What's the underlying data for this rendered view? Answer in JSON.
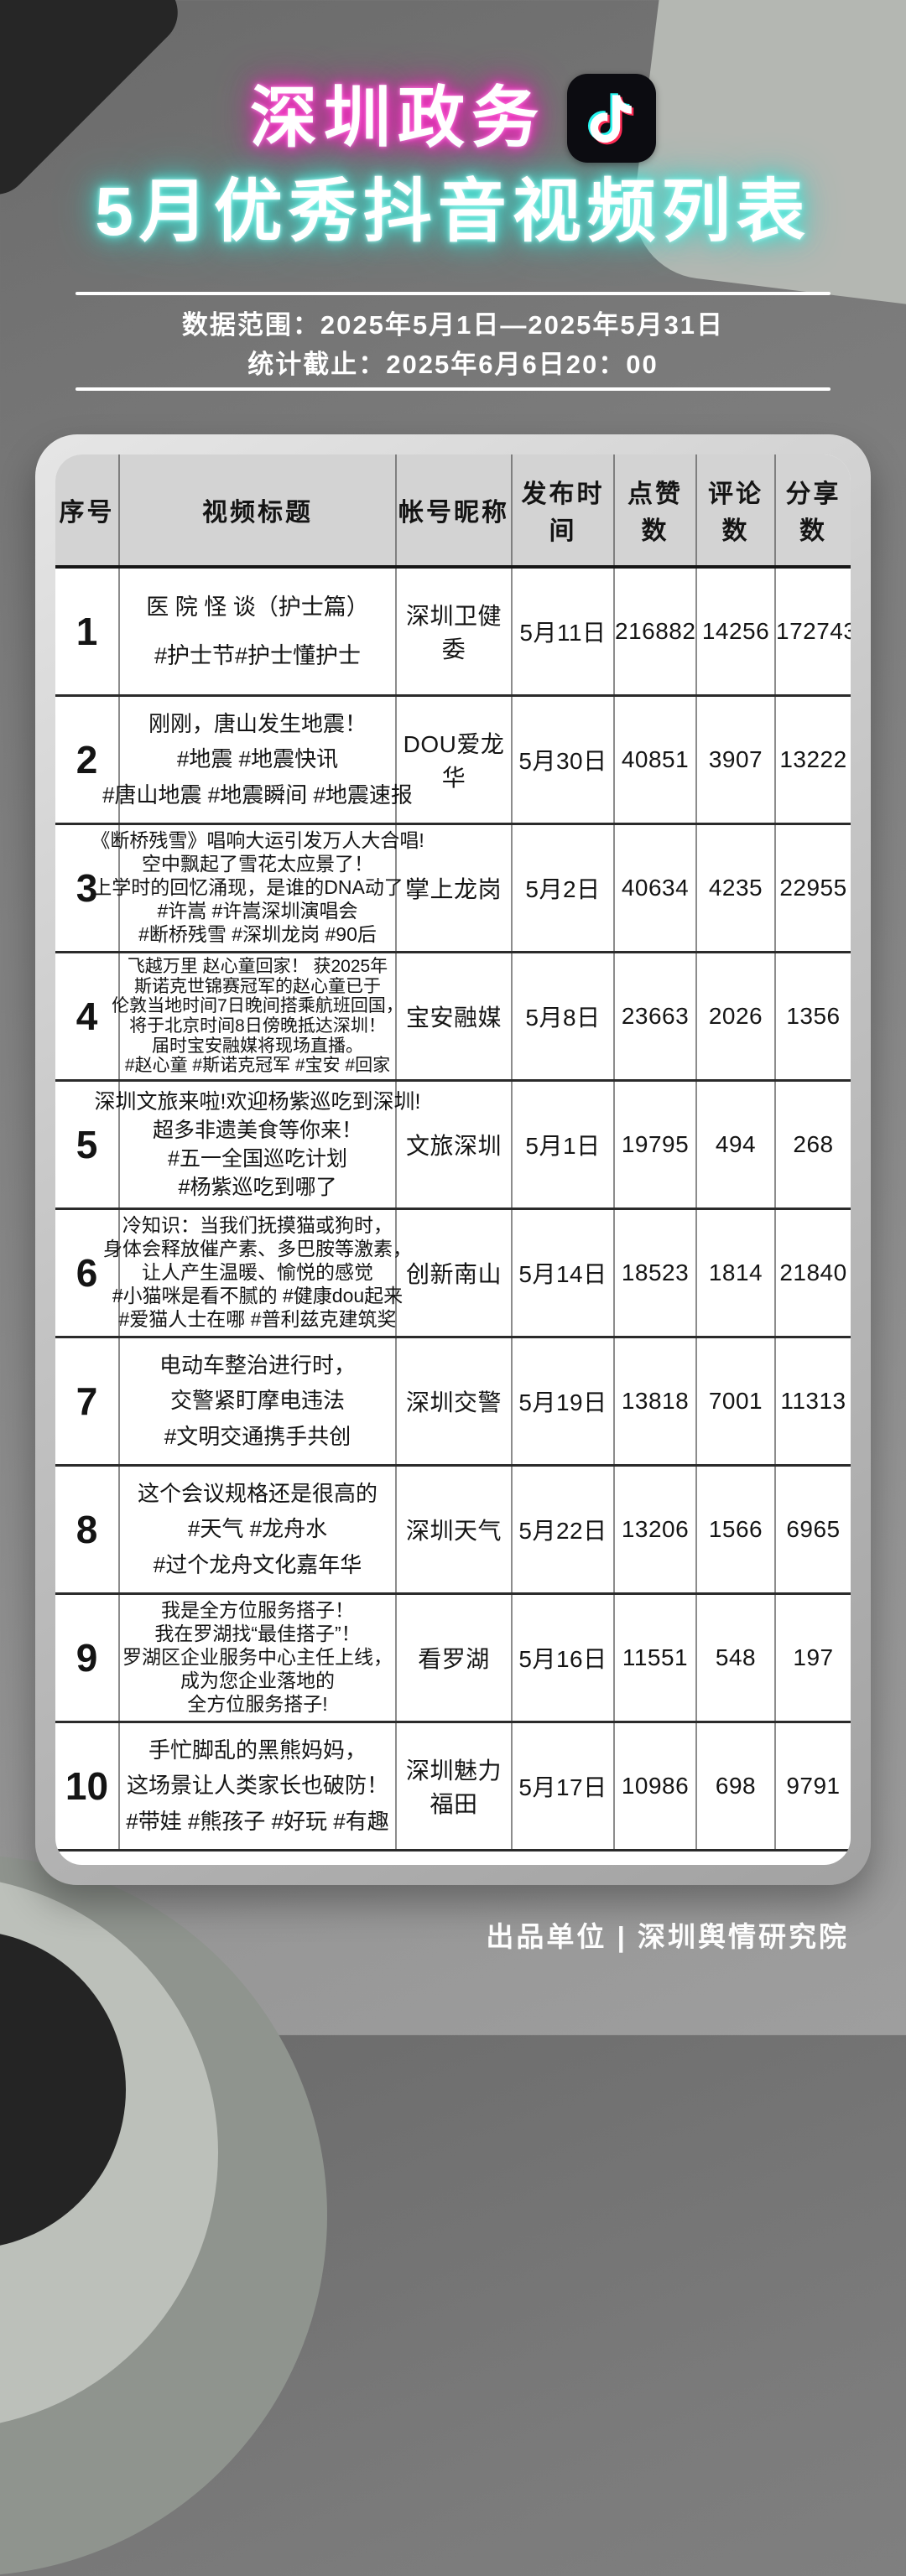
{
  "header": {
    "title_line1": "深圳政务",
    "title_line2": "5月优秀抖音视频列表",
    "logo": "douyin-tiktok-logo"
  },
  "meta": {
    "data_range": "数据范围：2025年5月1日—2025年5月31日",
    "stat_deadline": "统计截止：2025年6月6日20：00"
  },
  "table": {
    "columns": [
      "序号",
      "视频标题",
      "帐号昵称",
      "发布时间",
      "点赞数",
      "评论数",
      "分享数"
    ],
    "rows": [
      {
        "no": "1",
        "title_lines": [
          "医 院 怪 谈（护士篇）",
          "#护士节#护士懂护士"
        ],
        "account": "深圳卫健委",
        "date": "5月11日",
        "likes": "216882",
        "comments": "14256",
        "shares": "172743"
      },
      {
        "no": "2",
        "title_lines": [
          "刚刚，唐山发生地震！",
          "#地震 #地震快讯",
          "#唐山地震 #地震瞬间 #地震速报"
        ],
        "account": "DOU爱龙华",
        "date": "5月30日",
        "likes": "40851",
        "comments": "3907",
        "shares": "13222"
      },
      {
        "no": "3",
        "title_lines": [
          "《断桥残雪》唱响大运引发万人大合唱!",
          "空中飘起了雪花太应景了！",
          "上学时的回忆涌现，是谁的DNA动了！",
          "#许嵩 #许嵩深圳演唱会",
          "#断桥残雪 #深圳龙岗 #90后"
        ],
        "account": "掌上龙岗",
        "date": "5月2日",
        "likes": "40634",
        "comments": "4235",
        "shares": "22955"
      },
      {
        "no": "4",
        "title_lines": [
          "飞越万里 赵心童回家！ 获2025年",
          "斯诺克世锦赛冠军的赵心童已于",
          "伦敦当地时间7日晚间搭乘航班回国，",
          "将于北京时间8日傍晚抵达深圳！",
          "届时宝安融媒将现场直播。",
          "#赵心童 #斯诺克冠军 #宝安 #回家"
        ],
        "account": "宝安融媒",
        "date": "5月8日",
        "likes": "23663",
        "comments": "2026",
        "shares": "1356"
      },
      {
        "no": "5",
        "title_lines": [
          "深圳文旅来啦!欢迎杨紫巡吃到深圳!",
          "超多非遗美食等你来！",
          "#五一全国巡吃计划",
          "#杨紫巡吃到哪了"
        ],
        "account": "文旅深圳",
        "date": "5月1日",
        "likes": "19795",
        "comments": "494",
        "shares": "268"
      },
      {
        "no": "6",
        "title_lines": [
          "冷知识：当我们抚摸猫或狗时，",
          "身体会释放催产素、多巴胺等激素，",
          "让人产生温暖、愉悦的感觉",
          "#小猫咪是看不腻的 #健康dou起来",
          "#爱猫人士在哪 #普利兹克建筑奖"
        ],
        "account": "创新南山",
        "date": "5月14日",
        "likes": "18523",
        "comments": "1814",
        "shares": "21840"
      },
      {
        "no": "7",
        "title_lines": [
          "电动车整治进行时，",
          "交警紧盯摩电违法",
          "#文明交通携手共创"
        ],
        "account": "深圳交警",
        "date": "5月19日",
        "likes": "13818",
        "comments": "7001",
        "shares": "11313"
      },
      {
        "no": "8",
        "title_lines": [
          "这个会议规格还是很高的",
          "#天气 #龙舟水",
          "#过个龙舟文化嘉年华"
        ],
        "account": "深圳天气",
        "date": "5月22日",
        "likes": "13206",
        "comments": "1566",
        "shares": "6965"
      },
      {
        "no": "9",
        "title_lines": [
          "我是全方位服务搭子！",
          "我在罗湖找“最佳搭子”！",
          "罗湖区企业服务中心主任上线，",
          "成为您企业落地的",
          "全方位服务搭子!"
        ],
        "account": "看罗湖",
        "date": "5月16日",
        "likes": "11551",
        "comments": "548",
        "shares": "197"
      },
      {
        "no": "10",
        "title_lines": [
          "手忙脚乱的黑熊妈妈，",
          "这场景让人类家长也破防！",
          "#带娃 #熊孩子 #好玩 #有趣"
        ],
        "account": "深圳魅力福田",
        "date": "5月17日",
        "likes": "10986",
        "comments": "698",
        "shares": "9791"
      }
    ]
  },
  "footer": {
    "producer": "出品单位 | 深圳舆情研究院"
  },
  "colors": {
    "pink_glow": "#ff3fd0",
    "cyan_glow": "#63ece0",
    "tiktok_cyan": "#25F4EE",
    "tiktok_pink": "#FE2C55",
    "card_white": "#ffffff",
    "table_header_bg": "#d3d3d3",
    "background_gray": "#878787"
  }
}
